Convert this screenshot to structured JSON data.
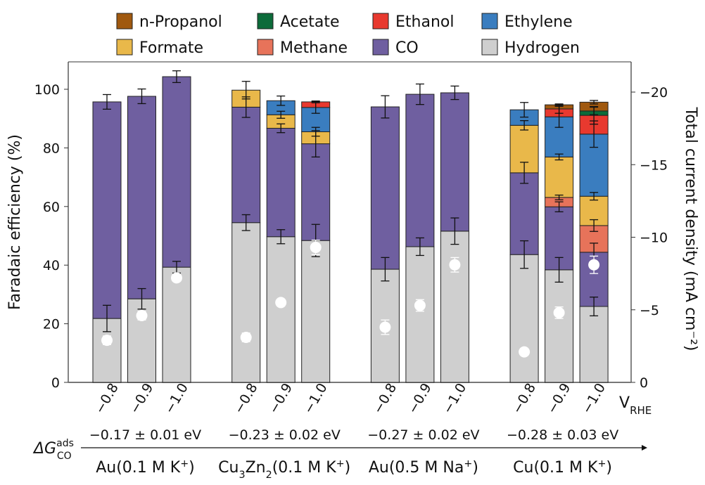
{
  "chart_data": {
    "type": "bar",
    "stacked": true,
    "ylabel": "Faradaic efficiency (%)",
    "ylabel_right": "Total current density (mA cm⁻²)",
    "ylim": [
      0,
      108
    ],
    "yticks": [
      0,
      20,
      40,
      60,
      80,
      100
    ],
    "ylim_right": [
      0,
      -21
    ],
    "yticks_right": [
      0,
      -5,
      -10,
      -15,
      -20
    ],
    "xaxis_unit": "V",
    "xaxis_unit_sub": "RHE",
    "delta_g_label": "ΔG",
    "delta_g_sup": "ads",
    "delta_g_sub": "CO",
    "legend_position": "top",
    "products": [
      {
        "name": "n-Propanol",
        "color": "#a0590f"
      },
      {
        "name": "Acetate",
        "color": "#0c6b3a"
      },
      {
        "name": "Ethanol",
        "color": "#e8392f"
      },
      {
        "name": "Ethylene",
        "color": "#3a7dbf"
      },
      {
        "name": "Formate",
        "color": "#e9b84a"
      },
      {
        "name": "Methane",
        "color": "#e7735a"
      },
      {
        "name": "CO",
        "color": "#6f5fa0"
      },
      {
        "name": "Hydrogen",
        "color": "#cfcfcf"
      }
    ],
    "stack_order": [
      "Hydrogen",
      "CO",
      "Methane",
      "Formate",
      "Ethylene",
      "Ethanol",
      "Acetate",
      "n-Propanol"
    ],
    "groups": [
      {
        "name": "Au(0.1 M K⁺)",
        "name_parts": [
          "Au(0.1 M K",
          "+",
          ")"
        ],
        "energy": "−0.17 ± 0.01 eV",
        "bars": [
          {
            "potential": "−0.8",
            "fe": {
              "Hydrogen": 21.8,
              "CO": 73.9
            },
            "err": {
              "Hydrogen": 4.5,
              "CO": 2.5
            },
            "current": -2.9,
            "current_err": 0.3
          },
          {
            "potential": "−0.9",
            "fe": {
              "Hydrogen": 28.5,
              "CO": 69.1
            },
            "err": {
              "Hydrogen": 3.5,
              "CO": 2.5
            },
            "current": -4.6,
            "current_err": 0.3
          },
          {
            "potential": "−1.0",
            "fe": {
              "Hydrogen": 39.3,
              "CO": 65.0
            },
            "err": {
              "Hydrogen": 2.0,
              "CO": 2.0
            },
            "current": -7.2,
            "current_err": 0.2
          }
        ]
      },
      {
        "name": "Cu3Zn2(0.1 M K⁺)",
        "name_parts": [
          "Cu",
          "3",
          "Zn",
          "2",
          "(0.1 M K",
          "+",
          ")"
        ],
        "energy": "−0.23 ± 0.02 eV",
        "bars": [
          {
            "potential": "−0.8",
            "fe": {
              "Hydrogen": 54.5,
              "CO": 39.4,
              "Formate": 5.8
            },
            "err": {
              "Hydrogen": 2.7,
              "CO": 3.5,
              "Formate": 3.0
            },
            "current": -3.1,
            "current_err": 0.3
          },
          {
            "potential": "−0.9",
            "fe": {
              "Hydrogen": 49.7,
              "CO": 37.0,
              "Formate": 4.6,
              "Ethylene": 4.8
            },
            "err": {
              "Hydrogen": 2.4,
              "CO": 1.5,
              "Formate": 1.2,
              "Ethylene": 1.6
            },
            "current": -5.5,
            "current_err": 0.1
          },
          {
            "potential": "−1.0",
            "fe": {
              "Hydrogen": 48.4,
              "CO": 33.0,
              "Formate": 4.1,
              "Ethylene": 8.3,
              "Ethanol": 1.9
            },
            "err": {
              "Hydrogen": 5.5,
              "CO": 4.5,
              "Formate": 1.5,
              "Ethylene": 2.0,
              "Ethanol": 0.3
            },
            "current": -9.3,
            "current_err": 0.5
          }
        ]
      },
      {
        "name": "Au(0.5 M Na⁺)",
        "name_parts": [
          "Au(0.5 M Na",
          "+",
          ")"
        ],
        "energy": "−0.27 ± 0.02 eV",
        "bars": [
          {
            "potential": "−0.8",
            "fe": {
              "Hydrogen": 38.6,
              "CO": 55.4
            },
            "err": {
              "Hydrogen": 4.0,
              "CO": 3.8
            },
            "current": -3.8,
            "current_err": 0.5
          },
          {
            "potential": "−0.9",
            "fe": {
              "Hydrogen": 46.3,
              "CO": 52.0
            },
            "err": {
              "Hydrogen": 3.0,
              "CO": 3.5
            },
            "current": -5.3,
            "current_err": 0.4
          },
          {
            "potential": "−1.0",
            "fe": {
              "Hydrogen": 51.6,
              "CO": 47.2
            },
            "err": {
              "Hydrogen": 4.5,
              "CO": 2.3
            },
            "current": -8.1,
            "current_err": 0.5
          }
        ]
      },
      {
        "name": "Cu(0.1 M K⁺)",
        "name_parts": [
          "Cu(0.1 M K",
          "+",
          ")"
        ],
        "energy": "−0.28 ± 0.03 eV",
        "bars": [
          {
            "potential": "−0.8",
            "fe": {
              "Hydrogen": 43.6,
              "CO": 27.9,
              "Formate": 16.2,
              "Ethylene": 5.3
            },
            "err": {
              "Hydrogen": 4.7,
              "CO": 3.6,
              "Formate": 1.6,
              "Ethylene": 2.5
            },
            "current": -2.1,
            "current_err": 0.2
          },
          {
            "potential": "−0.9",
            "fe": {
              "Hydrogen": 38.4,
              "CO": 21.5,
              "Methane": 3.2,
              "Formate": 13.8,
              "Ethylene": 13.7,
              "Ethanol": 2.7,
              "n-Propanol": 1.4
            },
            "err": {
              "Hydrogen": 4.2,
              "CO": 1.7,
              "Methane": 0.8,
              "Formate": 1.0,
              "Ethylene": 3.6,
              "Ethanol": 1.5,
              "n-Propanol": 0.3
            },
            "current": -4.8,
            "current_err": 0.4
          },
          {
            "potential": "−1.0",
            "fe": {
              "Hydrogen": 25.9,
              "CO": 18.5,
              "Methane": 9.1,
              "Formate": 10.0,
              "Ethylene": 21.2,
              "Ethanol": 6.4,
              "Acetate": 1.5,
              "n-Propanol": 3.0
            },
            "err": {
              "Hydrogen": 3.2,
              "CO": 3.1,
              "Methane": 2.0,
              "Formate": 1.3,
              "Ethylene": 4.5,
              "Ethanol": 3.0,
              "Acetate": 1.3,
              "n-Propanol": 0.6
            },
            "current": -8.1,
            "current_err": 0.6
          }
        ]
      }
    ]
  }
}
